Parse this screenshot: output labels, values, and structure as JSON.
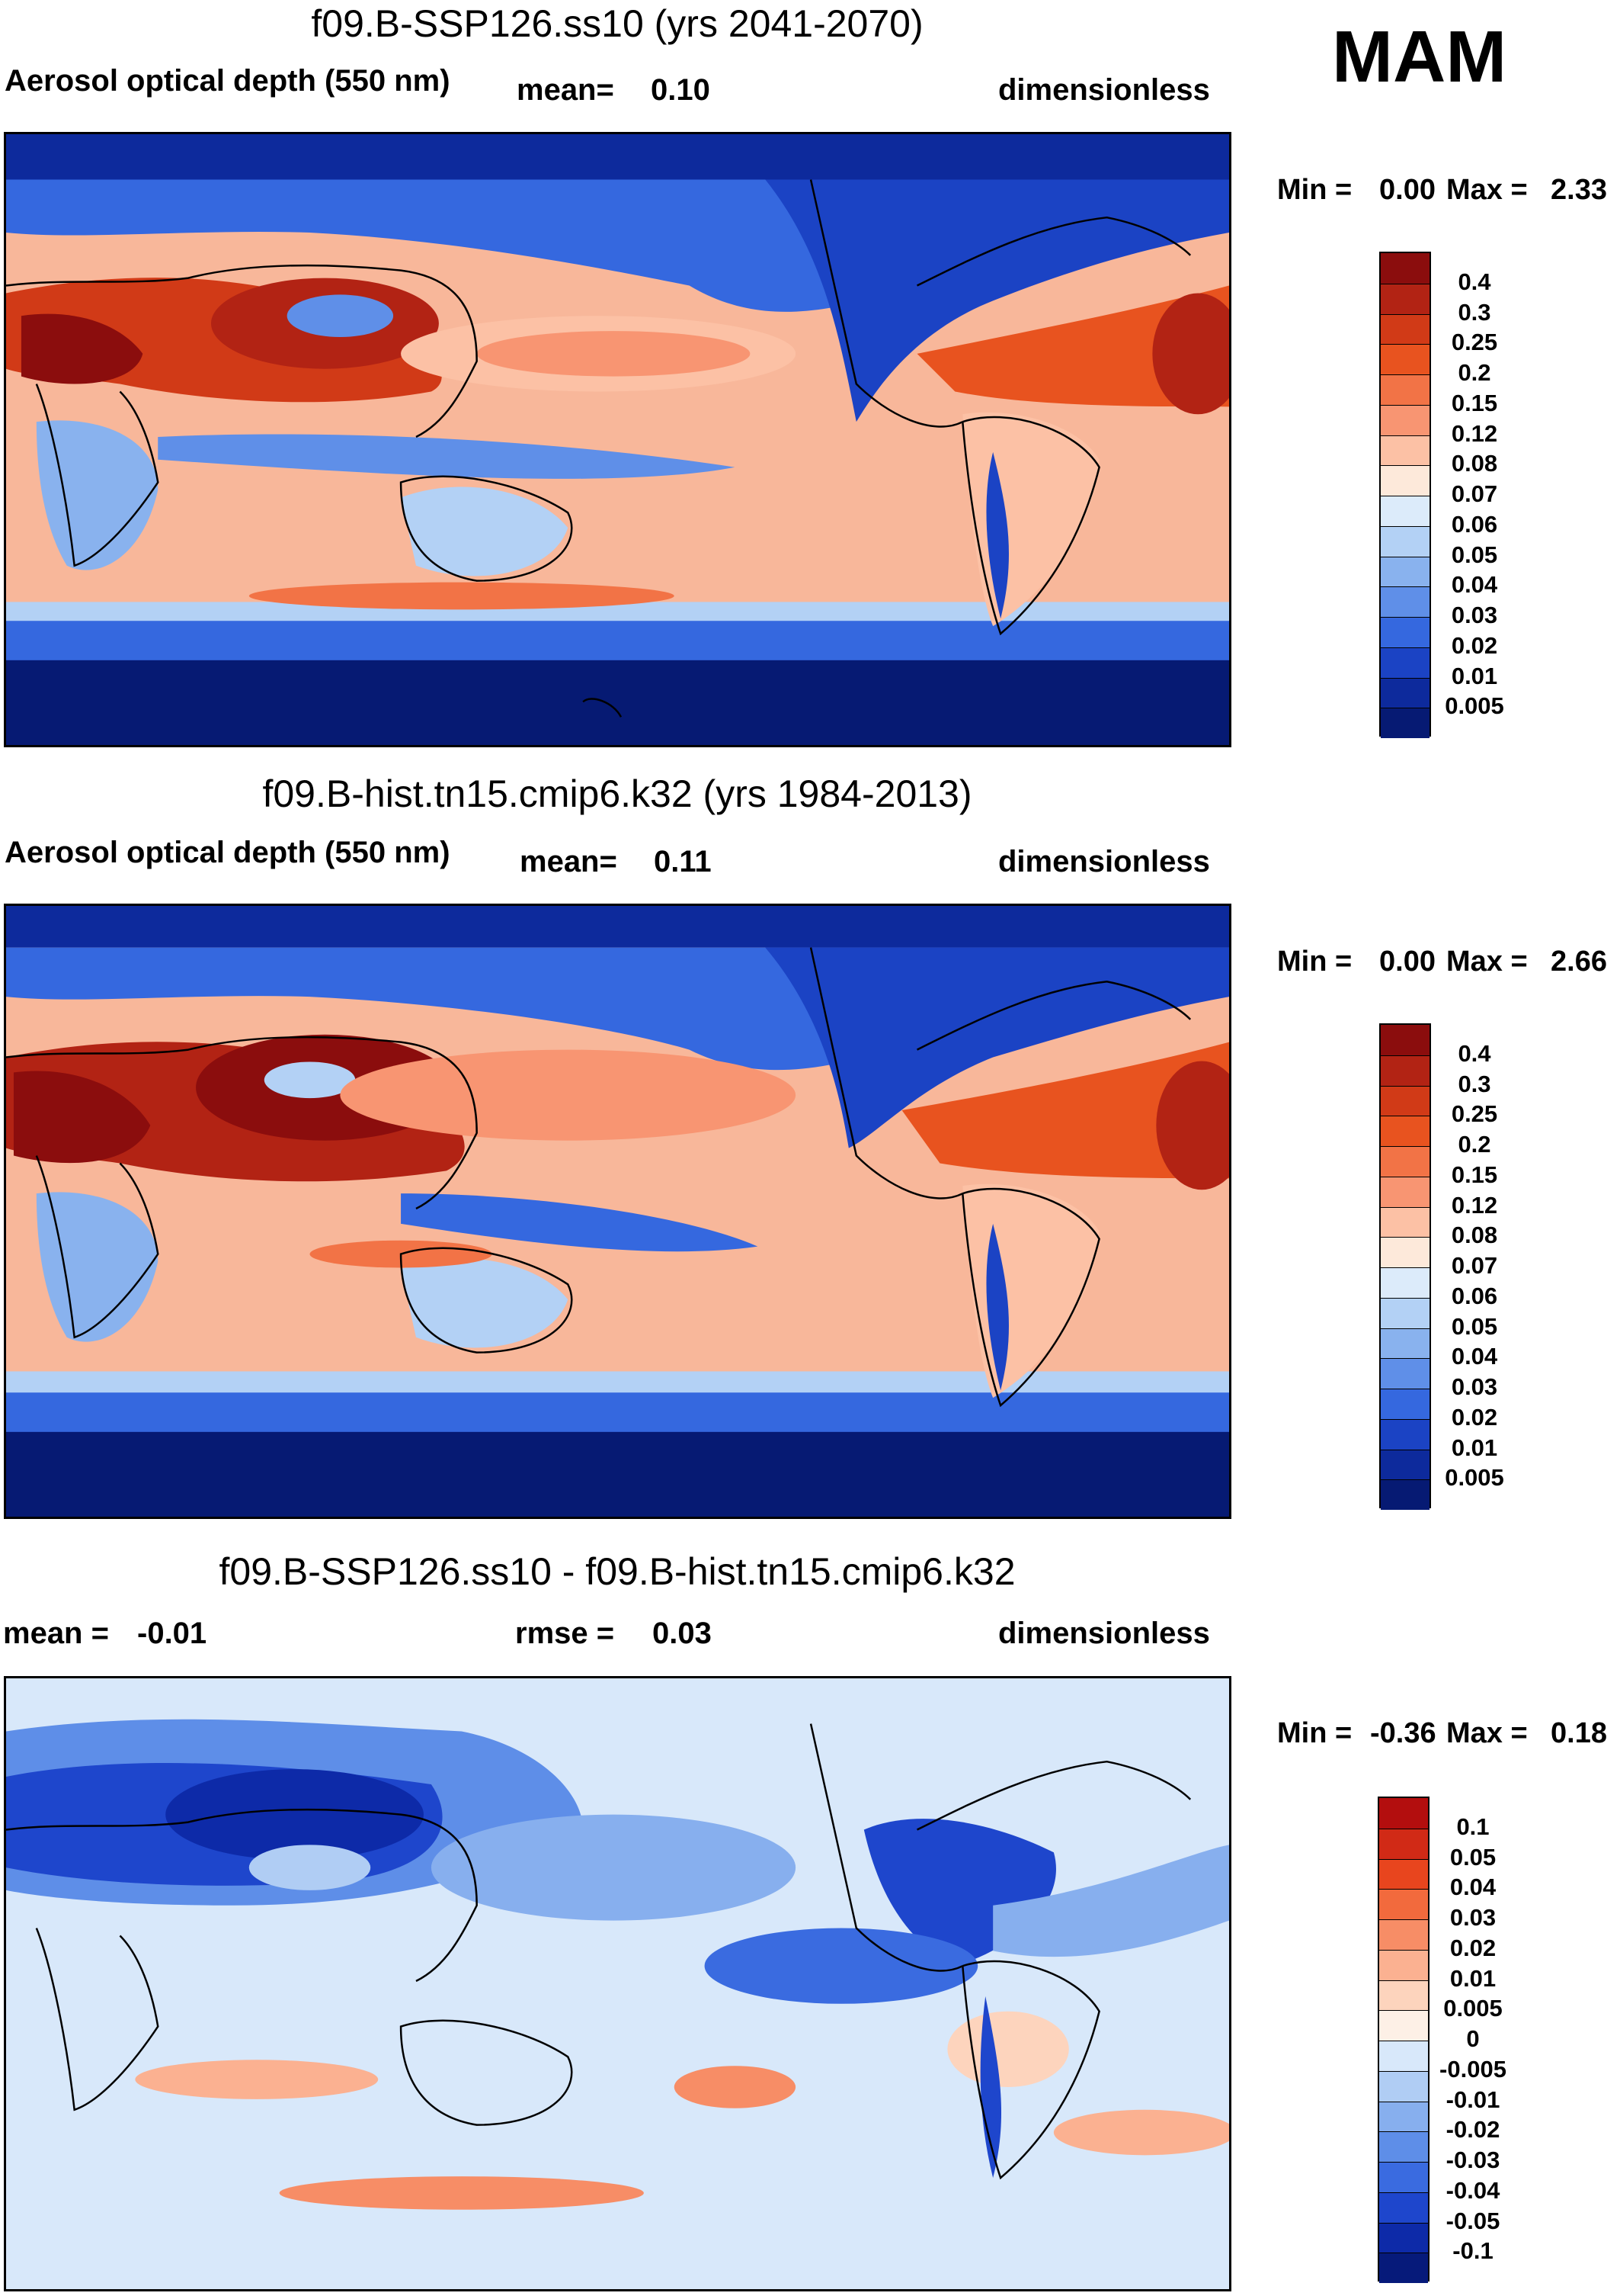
{
  "season": "MAM",
  "panels": [
    {
      "id": "future",
      "title": "f09.B-SSP126.ss10 (yrs 2041-2070)",
      "left_label": "Aerosol optical depth (550 nm)",
      "mid_label": "mean=",
      "mid_value": "0.10",
      "right_label": "dimensionless",
      "min_label": "Min =",
      "min_value": "0.00",
      "max_label": "Max =",
      "max_value": "2.33",
      "scale": "abs"
    },
    {
      "id": "historical",
      "title": "f09.B-hist.tn15.cmip6.k32 (yrs 1984-2013)",
      "left_label": "Aerosol optical depth (550 nm)",
      "mid_label": "mean=",
      "mid_value": "0.11",
      "right_label": "dimensionless",
      "min_label": "Min =",
      "min_value": "0.00",
      "max_label": "Max =",
      "max_value": "2.66",
      "scale": "abs"
    },
    {
      "id": "difference",
      "title": "f09.B-SSP126.ss10 - f09.B-hist.tn15.cmip6.k32",
      "left_label": "mean =",
      "left_value": "-0.01",
      "mid_label": "rmse =",
      "mid_value": "0.03",
      "right_label": "dimensionless",
      "min_label": "Min =",
      "min_value": "-0.36",
      "max_label": "Max =",
      "max_value": "0.18",
      "scale": "diff"
    }
  ],
  "colorbars": {
    "abs": {
      "ticks": [
        "0.4",
        "0.3",
        "0.25",
        "0.2",
        "0.15",
        "0.12",
        "0.08",
        "0.07",
        "0.06",
        "0.05",
        "0.04",
        "0.03",
        "0.02",
        "0.01",
        "0.005"
      ],
      "colors": [
        "#8b0d0d",
        "#b22314",
        "#d13a17",
        "#e8531f",
        "#f27346",
        "#f89572",
        "#fcc1a5",
        "#fde9da",
        "#dcebfa",
        "#b3d1f5",
        "#89b2ee",
        "#5f8fe8",
        "#3568df",
        "#1b43c4",
        "#0d2a9c",
        "#061a73"
      ]
    },
    "diff": {
      "ticks": [
        "0.1",
        "0.05",
        "0.04",
        "0.03",
        "0.02",
        "0.01",
        "0.005",
        "0",
        "-0.005",
        "-0.01",
        "-0.02",
        "-0.03",
        "-0.04",
        "-0.05",
        "-0.1"
      ],
      "colors": [
        "#b30e0e",
        "#d12a16",
        "#e8451e",
        "#f26a3d",
        "#f78d66",
        "#fbb191",
        "#fdd4bd",
        "#fdf0e6",
        "#d8e8fa",
        "#b0cdf4",
        "#87afee",
        "#5e8ee8",
        "#3a6be0",
        "#1e46cc",
        "#0d2aa8",
        "#061a7a"
      ]
    }
  }
}
